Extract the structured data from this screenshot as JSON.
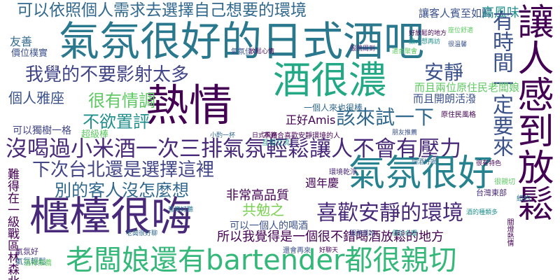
{
  "palette": {
    "background": "#ffffff",
    "purple": "#440154",
    "indigo": "#3b528b",
    "teal": "#21908c",
    "green": "#5ec962",
    "yellow": "#fde725"
  },
  "words": [
    {
      "text": "可以依照個人需求去選擇自己想要的環境",
      "color": "#31688e"
    },
    {
      "text": "氣氛很好的日式酒吧",
      "color": "#2a788e"
    },
    {
      "text": "讓客人賓至如歸",
      "color": "#3b528b"
    },
    {
      "text": "高風味",
      "color": "#21908c"
    },
    {
      "text": "熱情",
      "color": "#440154"
    },
    {
      "text": "酒很濃",
      "color": "#22a884"
    },
    {
      "text": "我覺的不要影射太多",
      "color": "#414487"
    },
    {
      "text": "安靜",
      "color": "#3b528b"
    },
    {
      "text": "個人雅座",
      "color": "#3b528b"
    },
    {
      "text": "很有情調",
      "color": "#5ec962"
    },
    {
      "text": "不欲置評",
      "color": "#21908c"
    },
    {
      "text": "可以獨樹一格",
      "color": "#414487"
    },
    {
      "text": "超級棒",
      "color": "#5ec962"
    },
    {
      "text": "正好Amis",
      "color": "#440154"
    },
    {
      "text": "該來試一下",
      "color": "#31688e"
    },
    {
      "text": "沒喝過小米酒一次三排氣氛輕鬆讓人不會有壓力",
      "color": "#482878"
    },
    {
      "text": "下次台北還是選擇這裡",
      "color": "#414487"
    },
    {
      "text": "別的客人沒怎麼想",
      "color": "#31688e"
    },
    {
      "text": "氣氛很好",
      "color": "#26828e"
    },
    {
      "text": "非常高品質",
      "color": "#440154"
    },
    {
      "text": "櫃檯很嗨",
      "color": "#482878"
    },
    {
      "text": "共勉之",
      "color": "#7ad151"
    },
    {
      "text": "喜歡安靜的環境",
      "color": "#482878"
    },
    {
      "text": "可以一個人的喝酒",
      "color": "#3b528b"
    },
    {
      "text": "所以我覺得是一個很不錯喝酒放鬆的地方",
      "color": "#440154"
    },
    {
      "text": "老闆娘還有bartender都很親切",
      "color": "#35b779"
    },
    {
      "text": "讓人感到放鬆",
      "color": "#440154"
    },
    {
      "text": "有時間一定要來",
      "color": "#3b528b"
    },
    {
      "text": "而且兩位原住民老闆娘",
      "color": "#5ec962"
    },
    {
      "text": "而且開朗活潑",
      "color": "#3b528b"
    },
    {
      "text": "一個人來也很棒",
      "color": "#31688e"
    },
    {
      "text": "週年慶",
      "color": "#440154"
    },
    {
      "text": "友善",
      "color": "#31688e"
    },
    {
      "text": "價位樸實",
      "color": "#3b528b"
    },
    {
      "text": "台灣東部",
      "color": "#482878"
    },
    {
      "text": "氣氛好",
      "color": "#482878"
    },
    {
      "text": "很親切",
      "color": "#5ec962"
    },
    {
      "text": "不適合喜歡安靜環境的人",
      "color": "#440154"
    },
    {
      "text": "互相交流",
      "color": "#21908c"
    },
    {
      "text": "難得在一級戰區林森北",
      "color": "#440154"
    },
    {
      "text": "氣氛輕鬆",
      "color": "#31688e"
    },
    {
      "text": "紐約",
      "color": "#2a788e"
    },
    {
      "text": "關燈熱情",
      "color": "#440154"
    },
    {
      "text": "座位舒適",
      "color": "#5ec962"
    },
    {
      "text": "好放鬆的地方",
      "color": "#440154"
    },
    {
      "text": "讓人想再訪",
      "color": "#21908c"
    },
    {
      "text": "很溫馨",
      "color": "#3b528b"
    },
    {
      "text": "環境乾淨",
      "color": "#482878"
    },
    {
      "text": "服務很好",
      "color": "#3b528b"
    },
    {
      "text": "價位合理",
      "color": "#21908c"
    },
    {
      "text": "原住民風格",
      "color": "#440154"
    },
    {
      "text": "調酒好喝",
      "color": "#31688e"
    },
    {
      "text": "值得推薦",
      "color": "#5ec962"
    },
    {
      "text": "還會再來",
      "color": "#3b528b"
    },
    {
      "text": "好聊天",
      "color": "#440154"
    },
    {
      "text": "音樂好聽",
      "color": "#2a788e"
    },
    {
      "text": "老闆很好聊",
      "color": "#31688e"
    },
    {
      "text": "很有特色",
      "color": "#440154"
    },
    {
      "text": "酒的種類多",
      "color": "#21908c"
    },
    {
      "text": "氣氛佳",
      "color": "#3b528b"
    },
    {
      "text": "服務周到",
      "color": "#482878"
    },
    {
      "text": "適合聚會",
      "color": "#5ec962"
    },
    {
      "text": "放鬆心情",
      "color": "#440154"
    },
    {
      "text": "小酌一杯",
      "color": "#31688e"
    },
    {
      "text": "朋友推薦",
      "color": "#3b528b"
    },
    {
      "text": "日式風格",
      "color": "#440154"
    }
  ]
}
